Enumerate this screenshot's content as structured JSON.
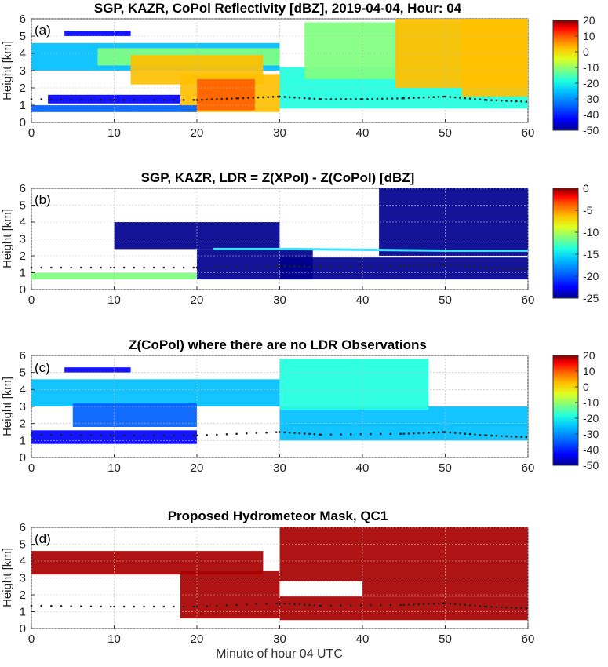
{
  "figure": {
    "xlabel": "Minute of hour 04 UTC"
  },
  "colormap_jet": [
    "#00008f",
    "#0000ff",
    "#0060ff",
    "#00bfff",
    "#20ffdf",
    "#80ff80",
    "#dfff20",
    "#ffbf00",
    "#ff6000",
    "#ff0000",
    "#800000"
  ],
  "chart_data": [
    {
      "panel": "a",
      "type": "heatmap",
      "title": "SGP, KAZR, CoPol Reflectivity [dBZ], 2019-04-04, Hour: 04",
      "panel_label": "(a)",
      "ylabel": "Height [km]",
      "xlim": [
        0,
        60
      ],
      "ylim": [
        0,
        6
      ],
      "xticks": [
        0,
        10,
        20,
        30,
        40,
        50,
        60
      ],
      "yticks": [
        0,
        1,
        2,
        3,
        4,
        5,
        6
      ],
      "colorbar": {
        "min": -50,
        "max": 20,
        "ticks": [
          20,
          10,
          0,
          -10,
          -20,
          -30,
          -40,
          -50
        ],
        "colormap": "jet"
      },
      "regions": [
        {
          "x": [
            0,
            30
          ],
          "y": [
            3.0,
            4.6
          ],
          "value": -28
        },
        {
          "x": [
            8,
            30
          ],
          "y": [
            3.3,
            4.3
          ],
          "value": -15
        },
        {
          "x": [
            12,
            28
          ],
          "y": [
            2.2,
            3.9
          ],
          "value": -3
        },
        {
          "x": [
            18,
            30
          ],
          "y": [
            0.6,
            2.8
          ],
          "value": -2
        },
        {
          "x": [
            20,
            27
          ],
          "y": [
            0.7,
            2.5
          ],
          "value": 6
        },
        {
          "x": [
            30,
            60
          ],
          "y": [
            0.8,
            3.2
          ],
          "value": -25
        },
        {
          "x": [
            33,
            60
          ],
          "y": [
            2.5,
            5.8
          ],
          "value": -12
        },
        {
          "x": [
            44,
            60
          ],
          "y": [
            2.0,
            6.0
          ],
          "value": -2
        },
        {
          "x": [
            52,
            60
          ],
          "y": [
            1.5,
            6.0
          ],
          "value": 0
        },
        {
          "x": [
            0,
            20
          ],
          "y": [
            0.6,
            1.0
          ],
          "value": -38
        },
        {
          "x": [
            2,
            18
          ],
          "y": [
            1.1,
            1.6
          ],
          "value": -40
        },
        {
          "x": [
            4,
            12
          ],
          "y": [
            5.0,
            5.3
          ],
          "value": -42
        }
      ],
      "ceilometer_line": [
        [
          0,
          1.35
        ],
        [
          10,
          1.3
        ],
        [
          20,
          1.3
        ],
        [
          25,
          1.4
        ],
        [
          30,
          1.5
        ],
        [
          35,
          1.35
        ],
        [
          40,
          1.35
        ],
        [
          45,
          1.4
        ],
        [
          50,
          1.5
        ],
        [
          55,
          1.3
        ],
        [
          60,
          1.2
        ]
      ]
    },
    {
      "panel": "b",
      "type": "heatmap",
      "title": "SGP, KAZR, LDR = Z(XPol) - Z(CoPol) [dBZ]",
      "panel_label": "(b)",
      "ylabel": "Height [km]",
      "xlim": [
        0,
        60
      ],
      "ylim": [
        0,
        6
      ],
      "xticks": [
        0,
        10,
        20,
        30,
        40,
        50,
        60
      ],
      "yticks": [
        0,
        1,
        2,
        3,
        4,
        5,
        6
      ],
      "colorbar": {
        "min": -25,
        "max": 0,
        "ticks": [
          0,
          -5,
          -10,
          -15,
          -20,
          -25
        ],
        "colormap": "jet"
      },
      "regions": [
        {
          "x": [
            10,
            30
          ],
          "y": [
            2.4,
            4.0
          ],
          "value": -24
        },
        {
          "x": [
            20,
            34
          ],
          "y": [
            0.6,
            2.4
          ],
          "value": -24
        },
        {
          "x": [
            30,
            60
          ],
          "y": [
            0.6,
            1.9
          ],
          "value": -24
        },
        {
          "x": [
            42,
            60
          ],
          "y": [
            2.0,
            6.0
          ],
          "value": -24
        },
        {
          "x": [
            0,
            20
          ],
          "y": [
            0.6,
            1.0
          ],
          "value": -13
        }
      ],
      "melting_layer": [
        [
          22,
          2.4
        ],
        [
          32,
          2.4
        ],
        [
          50,
          2.3
        ],
        [
          60,
          2.3
        ]
      ],
      "ceilometer_line": [
        [
          0,
          1.3
        ],
        [
          10,
          1.3
        ],
        [
          20,
          1.3
        ],
        [
          30,
          1.4
        ],
        [
          35,
          1.35
        ],
        [
          45,
          1.4
        ],
        [
          50,
          1.5
        ],
        [
          55,
          1.3
        ],
        [
          60,
          1.2
        ]
      ]
    },
    {
      "panel": "c",
      "type": "heatmap",
      "title": "Z(CoPol) where there are no LDR Observations",
      "panel_label": "(c)",
      "ylabel": "Height [km]",
      "xlim": [
        0,
        60
      ],
      "ylim": [
        0,
        6
      ],
      "xticks": [
        0,
        10,
        20,
        30,
        40,
        50,
        60
      ],
      "yticks": [
        0,
        1,
        2,
        3,
        4,
        5,
        6
      ],
      "colorbar": {
        "min": -50,
        "max": 20,
        "ticks": [
          20,
          10,
          0,
          -10,
          -20,
          -30,
          -40,
          -50
        ],
        "colormap": "jet"
      },
      "regions": [
        {
          "x": [
            0,
            30
          ],
          "y": [
            3.0,
            4.6
          ],
          "value": -30
        },
        {
          "x": [
            5,
            20
          ],
          "y": [
            1.8,
            3.2
          ],
          "value": -33
        },
        {
          "x": [
            30,
            60
          ],
          "y": [
            1.0,
            3.0
          ],
          "value": -28
        },
        {
          "x": [
            30,
            48
          ],
          "y": [
            2.8,
            5.8
          ],
          "value": -25
        },
        {
          "x": [
            0,
            20
          ],
          "y": [
            0.8,
            1.6
          ],
          "value": -40
        },
        {
          "x": [
            4,
            12
          ],
          "y": [
            5.0,
            5.3
          ],
          "value": -42
        }
      ],
      "ceilometer_line": [
        [
          0,
          1.35
        ],
        [
          10,
          1.3
        ],
        [
          20,
          1.3
        ],
        [
          30,
          1.5
        ],
        [
          35,
          1.35
        ],
        [
          45,
          1.4
        ],
        [
          50,
          1.5
        ],
        [
          55,
          1.3
        ],
        [
          60,
          1.2
        ]
      ]
    },
    {
      "panel": "d",
      "type": "heatmap",
      "title": "Proposed Hydrometeor Mask, QC1",
      "panel_label": "(d)",
      "ylabel": "Height [km]",
      "xlim": [
        0,
        60
      ],
      "ylim": [
        0,
        6
      ],
      "xticks": [
        0,
        10,
        20,
        30,
        40,
        50,
        60
      ],
      "yticks": [
        0,
        1,
        2,
        3,
        4,
        5,
        6
      ],
      "colorbar": null,
      "mask_color": "#a80000",
      "regions": [
        {
          "x": [
            0,
            28
          ],
          "y": [
            3.2,
            4.6
          ],
          "value": 1
        },
        {
          "x": [
            18,
            30
          ],
          "y": [
            0.6,
            3.4
          ],
          "value": 1
        },
        {
          "x": [
            30,
            60
          ],
          "y": [
            0.5,
            1.9
          ],
          "value": 1
        },
        {
          "x": [
            30,
            60
          ],
          "y": [
            2.8,
            6.0
          ],
          "value": 1
        },
        {
          "x": [
            40,
            60
          ],
          "y": [
            1.9,
            2.8
          ],
          "value": 1
        }
      ],
      "ceilometer_line": [
        [
          0,
          1.35
        ],
        [
          10,
          1.3
        ],
        [
          20,
          1.3
        ],
        [
          30,
          1.5
        ],
        [
          35,
          1.35
        ],
        [
          45,
          1.4
        ],
        [
          50,
          1.5
        ],
        [
          55,
          1.3
        ],
        [
          60,
          1.2
        ]
      ]
    }
  ]
}
